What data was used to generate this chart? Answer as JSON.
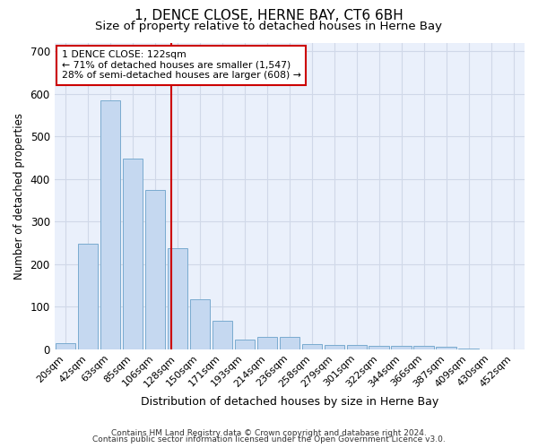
{
  "title": "1, DENCE CLOSE, HERNE BAY, CT6 6BH",
  "subtitle": "Size of property relative to detached houses in Herne Bay",
  "xlabel": "Distribution of detached houses by size in Herne Bay",
  "ylabel": "Number of detached properties",
  "categories": [
    "20sqm",
    "42sqm",
    "63sqm",
    "85sqm",
    "106sqm",
    "128sqm",
    "150sqm",
    "171sqm",
    "193sqm",
    "214sqm",
    "236sqm",
    "258sqm",
    "279sqm",
    "301sqm",
    "322sqm",
    "344sqm",
    "366sqm",
    "387sqm",
    "409sqm",
    "430sqm",
    "452sqm"
  ],
  "values": [
    15,
    247,
    585,
    447,
    375,
    237,
    118,
    67,
    22,
    30,
    30,
    13,
    10,
    10,
    8,
    8,
    8,
    5,
    2,
    0,
    0
  ],
  "bar_color": "#c5d8f0",
  "bar_edge_color": "#7aabcf",
  "grid_color": "#d0d8e8",
  "background_color": "#eaf0fb",
  "vline_color": "#cc0000",
  "annotation_text": "1 DENCE CLOSE: 122sqm\n← 71% of detached houses are smaller (1,547)\n28% of semi-detached houses are larger (608) →",
  "annotation_box_color": "#ffffff",
  "annotation_box_edge": "#cc0000",
  "ylim": [
    0,
    720
  ],
  "yticks": [
    0,
    100,
    200,
    300,
    400,
    500,
    600,
    700
  ],
  "footer1": "Contains HM Land Registry data © Crown copyright and database right 2024.",
  "footer2": "Contains public sector information licensed under the Open Government Licence v3.0."
}
